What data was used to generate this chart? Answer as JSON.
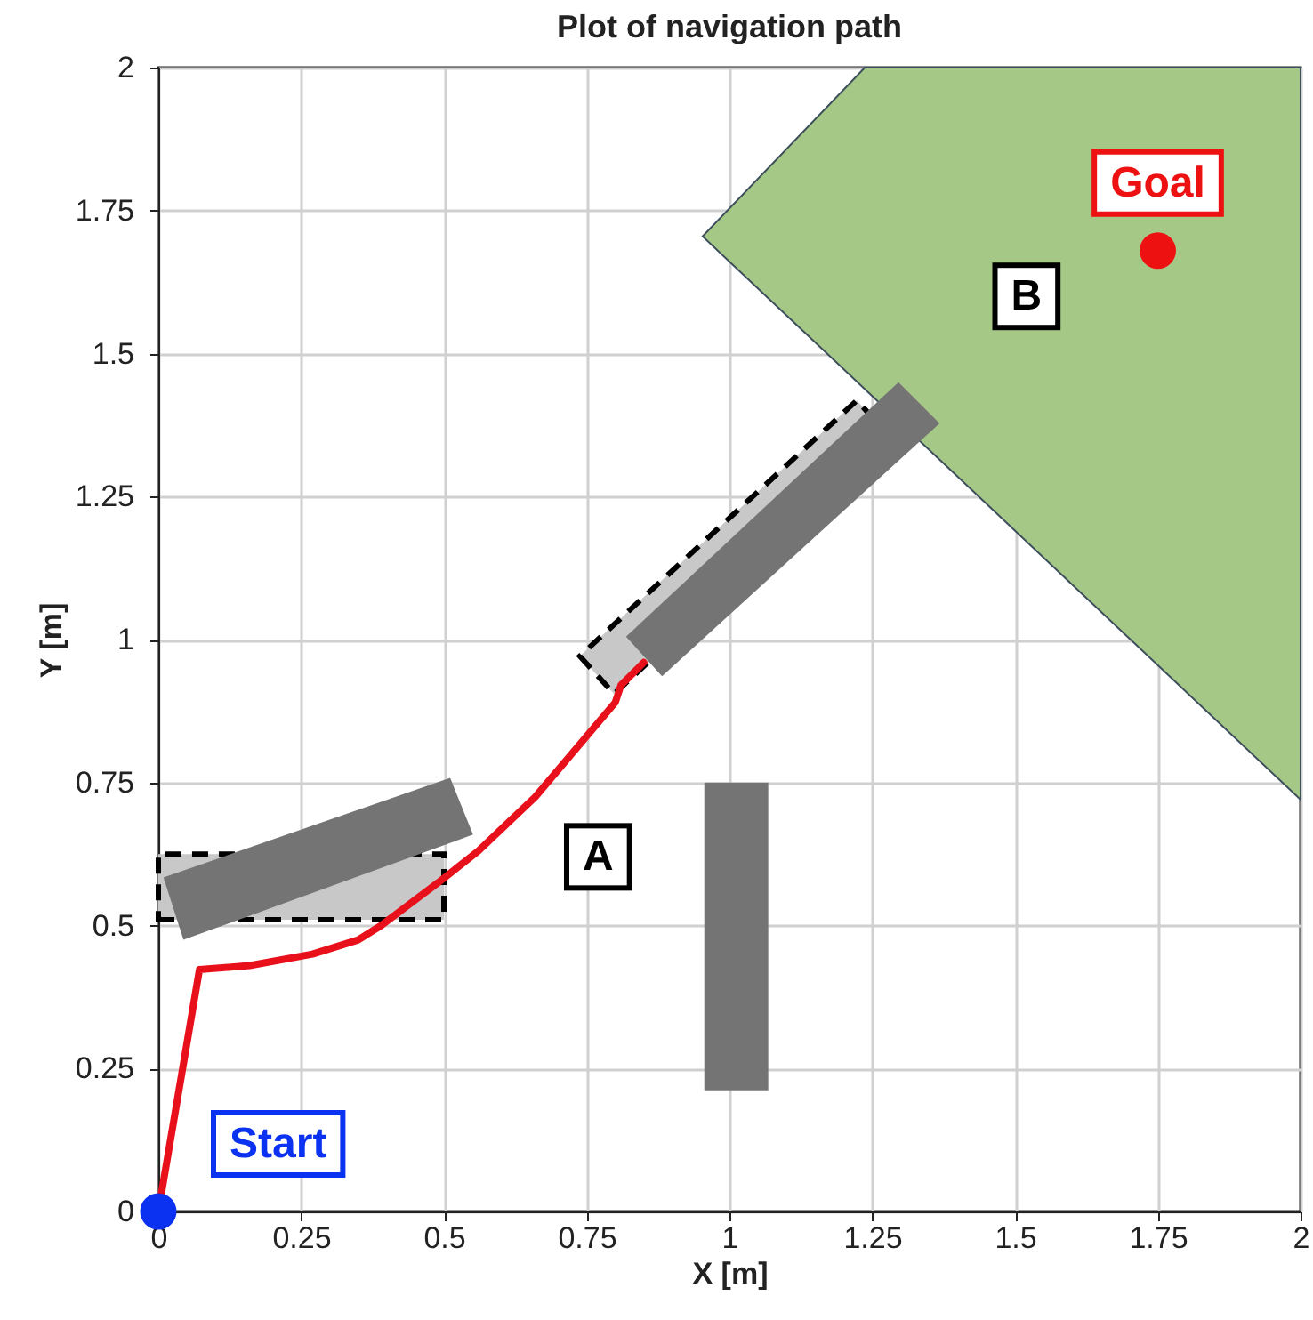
{
  "chart_data": {
    "type": "line",
    "title": "Plot of navigation path",
    "xlabel": "X [m]",
    "ylabel": "Y [m]",
    "xlim": [
      0,
      2
    ],
    "ylim": [
      0,
      2
    ],
    "xticks": [
      0,
      0.25,
      0.5,
      0.75,
      1,
      1.25,
      1.5,
      1.75,
      2
    ],
    "yticks": [
      0,
      0.25,
      0.5,
      0.75,
      1,
      1.25,
      1.5,
      1.75,
      2
    ],
    "grid": true,
    "series": [
      {
        "color": "#e8101a",
        "x": [
          0,
          0.072,
          0.16,
          0.27,
          0.35,
          0.39,
          0.49,
          0.56,
          0.66,
          0.8,
          0.81,
          0.85
        ],
        "values": [
          0,
          0.423,
          0.43,
          0.45,
          0.475,
          0.5,
          0.575,
          0.63,
          0.725,
          0.89,
          0.92,
          0.96
        ]
      },
      {
        "type": "scatter",
        "color": "#0a32f0",
        "x": [
          0
        ],
        "values": [
          0
        ]
      },
      {
        "type": "scatter",
        "color": "#ee1111",
        "x": [
          1.75
        ],
        "values": [
          1.68
        ]
      }
    ],
    "annotations": [
      {
        "text": "Start",
        "x": 0,
        "y": 0
      },
      {
        "text": "Goal",
        "x": 1.75,
        "y": 1.68
      },
      "A",
      "B"
    ]
  }
}
